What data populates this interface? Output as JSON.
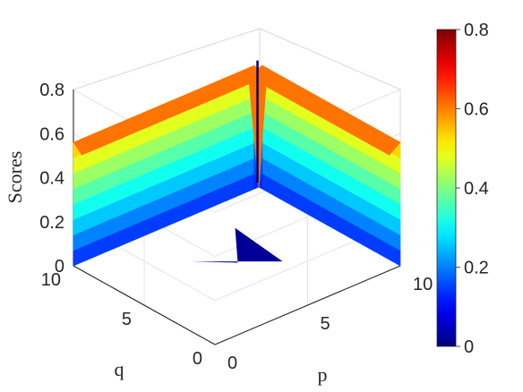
{
  "chart_data": {
    "type": "surface3d",
    "zlabel": "Scores",
    "xlabel": "p",
    "ylabel": "q",
    "xlim": [
      0,
      10
    ],
    "ylim": [
      0,
      10
    ],
    "zlim": [
      0,
      0.8
    ],
    "x_ticks": [
      "0",
      "5",
      "10"
    ],
    "y_ticks": [
      "0",
      "5",
      "10"
    ],
    "z_ticks": [
      "0",
      "0.2",
      "0.4",
      "0.6",
      "0.8"
    ],
    "grid": true,
    "colorbar": {
      "colormap": "jet",
      "range": [
        0,
        0.8
      ],
      "ticks": [
        "0",
        "0.2",
        "0.4",
        "0.6",
        "0.8"
      ]
    },
    "surface_description": {
      "edge_q10_scores": [
        0.56,
        0.5,
        0.43,
        0.36,
        0.31,
        0.27,
        0.255,
        0.25,
        0.25,
        0.25,
        0.25
      ],
      "edge_p10_scores": [
        0.56,
        0.5,
        0.43,
        0.36,
        0.31,
        0.27,
        0.255,
        0.25,
        0.25,
        0.25,
        0.25
      ],
      "corner_p0_q0_score": 0.65,
      "diagonal_p_eq_q_score": 0
    }
  }
}
